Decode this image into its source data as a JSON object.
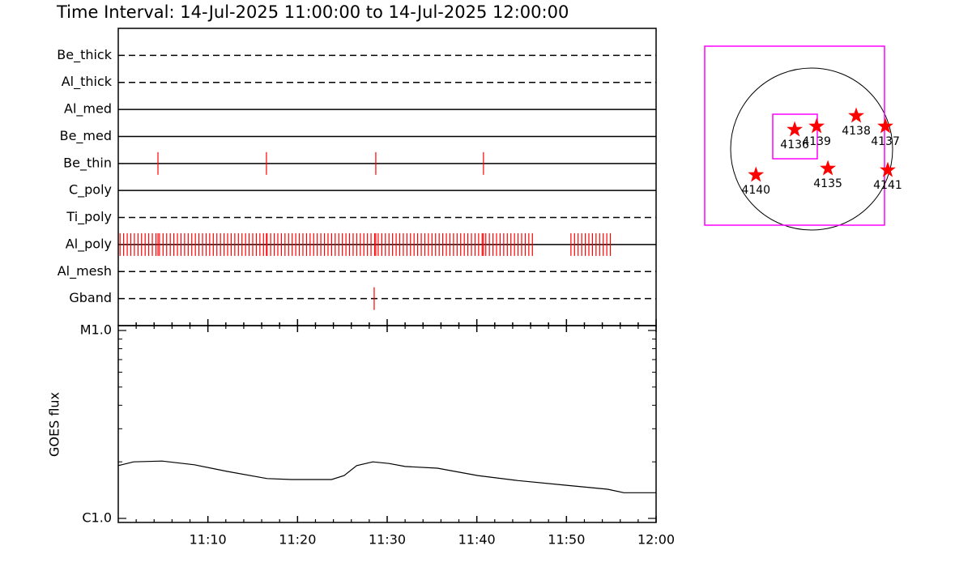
{
  "chart_data": [
    {
      "type": "timeline",
      "title": "Time Interval: 14-Jul-2025 11:00:00 to 14-Jul-2025 12:00:00",
      "color": "#ff0000",
      "xlim": [
        0,
        60
      ],
      "xticks": [
        10,
        20,
        30,
        40,
        50,
        60
      ],
      "xminorticks": [
        2,
        4,
        6,
        8,
        12,
        14,
        16,
        18,
        22,
        24,
        26,
        28,
        32,
        34,
        36,
        38,
        42,
        44,
        46,
        48,
        52,
        54,
        56,
        58
      ],
      "series": [
        {
          "name": "Be_thick",
          "style": "dashed",
          "events": []
        },
        {
          "name": "Al_thick",
          "style": "dashed",
          "events": []
        },
        {
          "name": "Al_med",
          "style": "solid",
          "events": []
        },
        {
          "name": "Be_med",
          "style": "solid",
          "events": []
        },
        {
          "name": "Be_thin",
          "style": "solid",
          "events": [
            4.43,
            16.53,
            28.73,
            40.74
          ]
        },
        {
          "name": "C_poly",
          "style": "solid",
          "events": []
        },
        {
          "name": "Ti_poly",
          "style": "dashed",
          "events": []
        },
        {
          "name": "Al_poly",
          "style": "solid",
          "events": [
            0.2,
            0.6,
            1,
            1.4,
            1.8,
            2.2,
            2.6,
            3,
            3.4,
            3.8,
            4.2,
            4.6,
            5,
            5.4,
            5.8,
            6.2,
            6.6,
            7,
            7.4,
            7.8,
            8.2,
            8.6,
            9,
            9.4,
            9.8,
            10.2,
            10.6,
            11,
            11.4,
            11.8,
            12.2,
            12.6,
            13,
            13.4,
            13.8,
            14.2,
            14.6,
            15,
            15.4,
            15.8,
            16.2,
            16.6,
            17,
            17.4,
            17.8,
            18.2,
            18.6,
            19,
            19.4,
            19.8,
            20.2,
            20.6,
            21,
            21.4,
            21.8,
            22.2,
            22.6,
            23,
            23.4,
            23.8,
            24.2,
            24.6,
            25,
            25.4,
            25.8,
            26.2,
            26.6,
            27,
            27.4,
            27.8,
            28.2,
            28.6,
            29,
            29.4,
            29.8,
            30.2,
            30.6,
            31,
            31.4,
            31.8,
            32.2,
            32.6,
            33,
            33.4,
            33.8,
            34.2,
            34.6,
            35,
            35.4,
            35.8,
            36.2,
            36.6,
            37,
            37.4,
            37.8,
            38.2,
            38.6,
            39,
            39.4,
            39.8,
            40.2,
            40.6,
            41,
            41.4,
            41.8,
            42.2,
            42.6,
            43,
            43.4,
            43.8,
            44.2,
            44.6,
            45,
            45.4,
            45.8,
            46.2,
            4.43,
            16.53,
            28.73,
            40.74,
            50.5,
            50.9,
            51.3,
            51.7,
            52.1,
            52.5,
            52.9,
            53.3,
            53.7,
            54.1,
            54.5,
            54.9
          ]
        },
        {
          "name": "Al_mesh",
          "style": "dashed",
          "events": []
        },
        {
          "name": "Gband",
          "style": "dashed",
          "events": [
            28.55
          ]
        }
      ]
    },
    {
      "type": "line",
      "y_label": "GOES flux",
      "log_y": true,
      "color": "#000000",
      "xlim": [
        0,
        60
      ],
      "xticks": [
        {
          "value": 10,
          "label": "11:10"
        },
        {
          "value": 20,
          "label": "11:20"
        },
        {
          "value": 30,
          "label": "11:30"
        },
        {
          "value": 40,
          "label": "11:40"
        },
        {
          "value": 50,
          "label": "11:50"
        },
        {
          "value": 60,
          "label": "12:00"
        }
      ],
      "xminorticks": [
        2,
        4,
        6,
        8,
        12,
        14,
        16,
        18,
        22,
        24,
        26,
        28,
        32,
        34,
        36,
        38,
        42,
        44,
        46,
        48,
        52,
        54,
        56,
        58
      ],
      "ylim": [
        1e-06,
        1e-05
      ],
      "yticks": [
        {
          "value": 1e-06,
          "label": "C1.0"
        },
        {
          "value": 1e-05,
          "label": "M1.0"
        }
      ],
      "yminorticks": [
        2e-06,
        3e-06,
        4e-06,
        5e-06,
        6e-06,
        7e-06,
        8e-06,
        9e-06
      ],
      "x": [
        0,
        1.72,
        4.88,
        8.49,
        12.1,
        16.6,
        19.3,
        23.8,
        25.2,
        26.6,
        28.4,
        30.2,
        32.0,
        35.6,
        40.1,
        44.6,
        50.0,
        54.6,
        56.4,
        60
      ],
      "values": [
        1.91e-06,
        2e-06,
        2.02e-06,
        1.93e-06,
        1.78e-06,
        1.63e-06,
        1.61e-06,
        1.61e-06,
        1.69e-06,
        1.91e-06,
        2e-06,
        1.96e-06,
        1.89e-06,
        1.85e-06,
        1.69e-06,
        1.59e-06,
        1.5e-06,
        1.43e-06,
        1.37e-06,
        1.37e-06
      ]
    },
    {
      "type": "scatter",
      "color": "#ff0000",
      "frame_color": "#ff00ff",
      "xlim": [
        -1270,
        864
      ],
      "ylim": [
        -902,
        1219
      ],
      "labels": [
        "4136",
        "4139",
        "4138",
        "4137",
        "4135",
        "4140",
        "4141"
      ],
      "x": [
        -202,
        58,
        528,
        874,
        192,
        -662,
        902
      ],
      "y": [
        230,
        269,
        394,
        269,
        -230,
        -307,
        -250
      ]
    }
  ]
}
